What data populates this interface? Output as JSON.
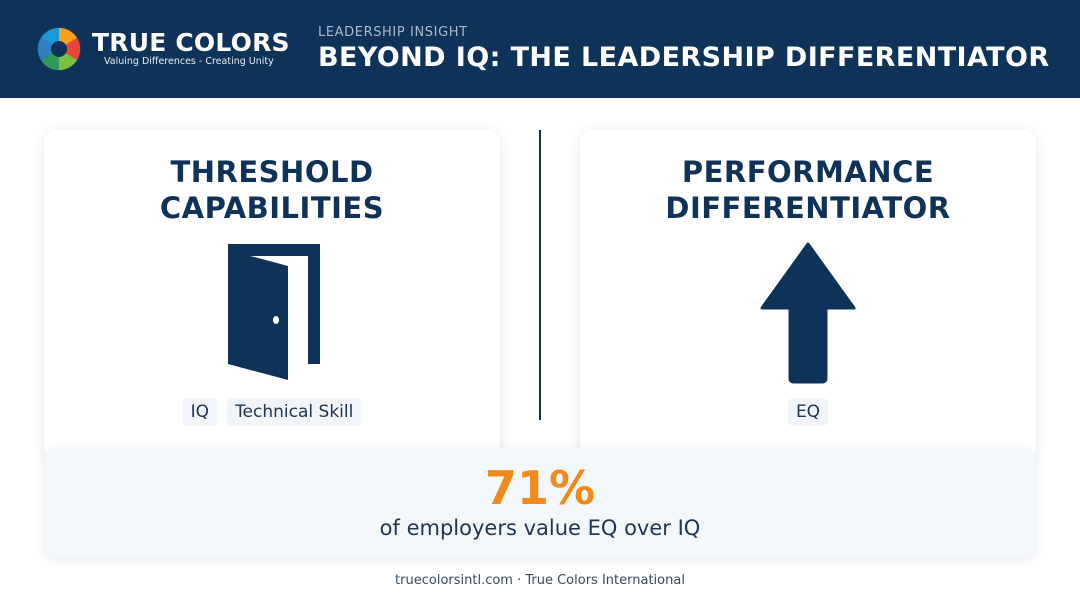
{
  "brand": {
    "name": "TRUE COLORS",
    "tagline": "Valuing Differences - Creating Unity",
    "logo_icon": "multicolor-swirl-logo-icon",
    "colors": [
      "#f7a21b",
      "#e8463a",
      "#2f7fc1",
      "#7cc142",
      "#1a9ad6"
    ]
  },
  "header": {
    "eyebrow": "LEADERSHIP INSIGHT",
    "title": "BEYOND IQ: THE LEADERSHIP DIFFERENTIATOR"
  },
  "threshold_card": {
    "title_line1": "THRESHOLD",
    "title_line2": "CAPABILITIES",
    "icon": "open-door-icon",
    "chips": [
      "IQ",
      "Technical Skill"
    ]
  },
  "differentiator_card": {
    "title_line1": "PERFORMANCE",
    "title_line2": "DIFFERENTIATOR",
    "icon": "up-arrow-icon",
    "chips": [
      "EQ"
    ]
  },
  "stat": {
    "value": "71%",
    "caption": "of employers value EQ over IQ"
  },
  "footer": {
    "text": "truecolorsintl.com · True Colors International"
  },
  "theme": {
    "navy": "#0f3358",
    "accent_orange": "#f08a1c",
    "panel_bg": "#f4f7fa"
  }
}
